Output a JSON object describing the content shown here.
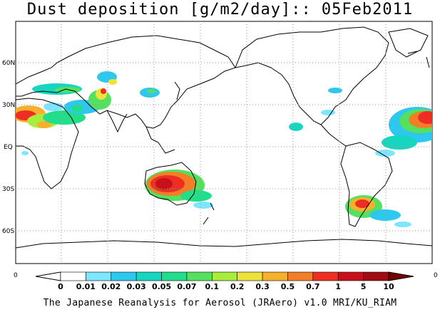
{
  "title": "Dust deposition [g/m2/day]:: 05Feb2011",
  "footer": "The Japanese Reanalysis for Aerosol (JRAero) v1.0 MRI/KU_RIAM",
  "map": {
    "lat_labels": [
      "60N",
      "30N",
      "EQ",
      "30S",
      "60S"
    ],
    "lat_values": [
      60,
      30,
      0,
      -30,
      -60
    ],
    "lon_range": [
      0,
      360
    ],
    "lat_range": [
      -90,
      90
    ],
    "grid": "dotted"
  },
  "colorbar": {
    "end_left": "0",
    "end_right": "0",
    "labels": [
      "0",
      "0.01",
      "0.02",
      "0.03",
      "0.05",
      "0.07",
      "0.1",
      "0.2",
      "0.3",
      "0.5",
      "0.7",
      "1",
      "5",
      "10"
    ],
    "colors": [
      "#ffffff",
      "#ffffff",
      "#7fe6ff",
      "#2ec8ee",
      "#17d6c0",
      "#22dd8a",
      "#55e060",
      "#a8ec3c",
      "#ece23a",
      "#f6b02e",
      "#f47e28",
      "#ee2e22",
      "#c8101a",
      "#a00c12",
      "#7a0000"
    ]
  },
  "dust_regions": [
    {
      "name": "north-africa-sahara",
      "lon": 10,
      "lat": 22
    },
    {
      "name": "arabia",
      "lon": 45,
      "lat": 25
    },
    {
      "name": "central-asia",
      "lon": 75,
      "lat": 35
    },
    {
      "name": "east-asia",
      "lon": 105,
      "lat": 40
    },
    {
      "name": "australia",
      "lon": 130,
      "lat": -25
    },
    {
      "name": "patagonia",
      "lon": 295,
      "lat": -40
    },
    {
      "name": "north-atlantic-africa-plume",
      "lon": 345,
      "lat": 20
    }
  ]
}
